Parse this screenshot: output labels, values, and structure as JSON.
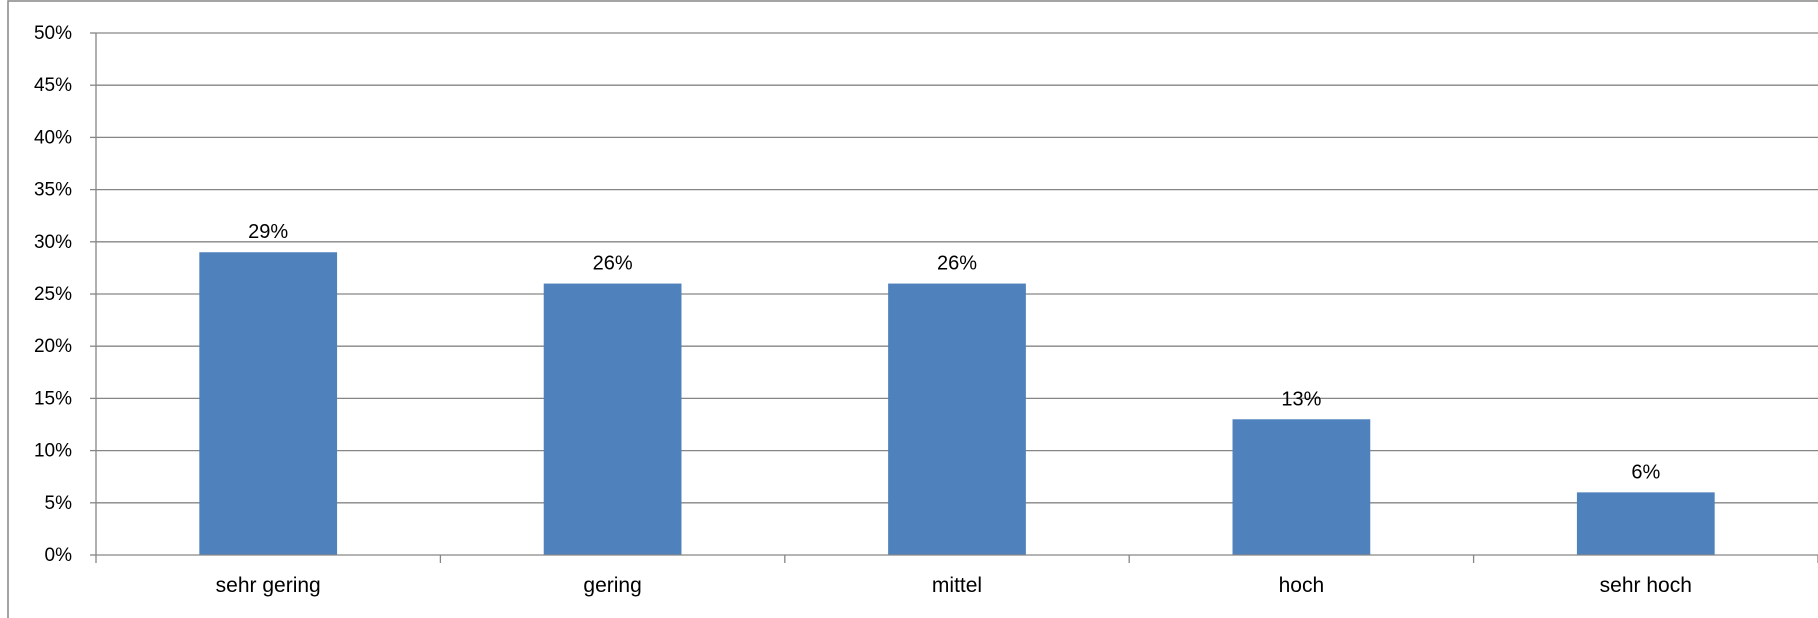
{
  "chart_data": {
    "type": "bar",
    "title": "",
    "xlabel": "",
    "ylabel": "",
    "categories": [
      "sehr gering",
      "gering",
      "mittel",
      "hoch",
      "sehr hoch"
    ],
    "values": [
      29,
      26,
      26,
      13,
      6
    ],
    "value_labels": [
      "29%",
      "26%",
      "26%",
      "13%",
      "6%"
    ],
    "ylim": [
      0,
      50
    ],
    "y_ticks": [
      0,
      5,
      10,
      15,
      20,
      25,
      30,
      35,
      40,
      45,
      50
    ],
    "y_tick_labels": [
      "0%",
      "5%",
      "10%",
      "15%",
      "20%",
      "25%",
      "30%",
      "35%",
      "40%",
      "45%",
      "50%"
    ],
    "grid": true,
    "legend": "none",
    "bar_color": "#4F81BD"
  }
}
